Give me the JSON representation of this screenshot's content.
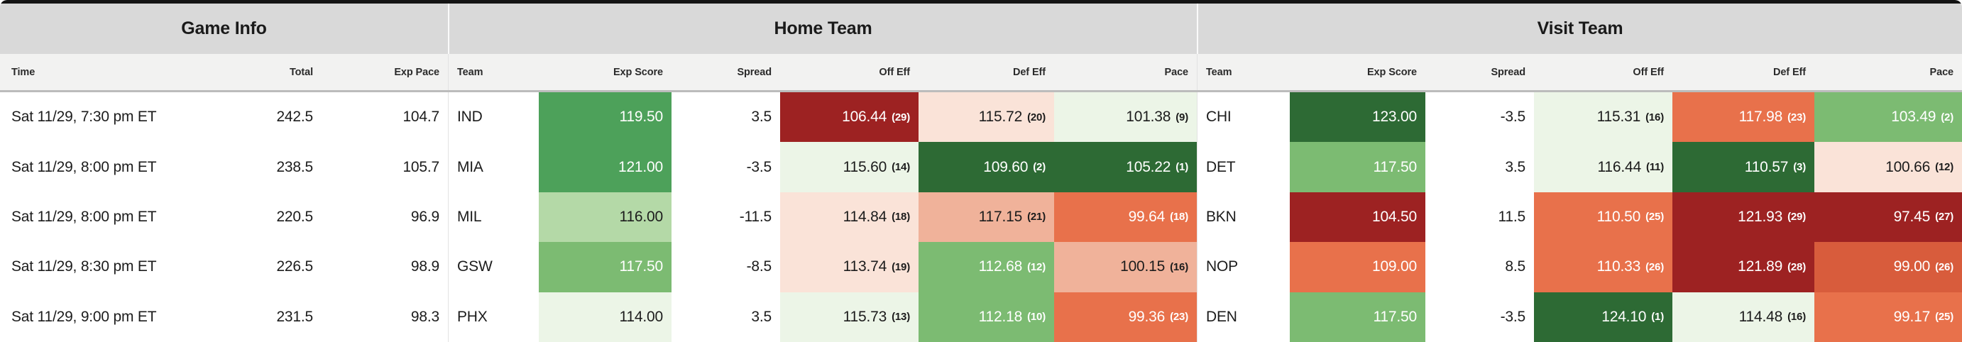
{
  "header": {
    "sections": [
      {
        "title": "Game Info"
      },
      {
        "title": "Home Team"
      },
      {
        "title": "Visit Team"
      }
    ],
    "game_cols": [
      "Time",
      "Total",
      "Exp Pace"
    ],
    "home_cols": [
      "Team",
      "Exp Score",
      "Spread",
      "Off Eff",
      "Def Eff",
      "Pace"
    ],
    "visit_cols": [
      "Team",
      "Exp Score",
      "Spread",
      "Off Eff",
      "Def Eff",
      "Pace"
    ]
  },
  "palette": {
    "g5": "#2d6a34",
    "g4": "#4da15a",
    "g3": "#7cbb72",
    "g2": "#b4d9a7",
    "g1": "#ecf5e7",
    "r1": "#fae3d8",
    "r2": "#f0b29a",
    "r3": "#e8714b",
    "r4": "#d85c3c",
    "r5": "#9d2222"
  },
  "rows": [
    {
      "time": "Sat 11/29, 7:30 pm ET",
      "total": "242.5",
      "exp_pace": "104.7",
      "home": {
        "team": "IND",
        "exp_score": {
          "value": "119.50",
          "bg": "g4"
        },
        "spread": "3.5",
        "off_eff": {
          "value": "106.44",
          "rank": "(29)",
          "bg": "r5"
        },
        "def_eff": {
          "value": "115.72",
          "rank": "(20)",
          "bg": "r1"
        },
        "pace": {
          "value": "101.38",
          "rank": "(9)",
          "bg": "g1"
        }
      },
      "visit": {
        "team": "CHI",
        "exp_score": {
          "value": "123.00",
          "bg": "g5"
        },
        "spread": "-3.5",
        "off_eff": {
          "value": "115.31",
          "rank": "(16)",
          "bg": "g1"
        },
        "def_eff": {
          "value": "117.98",
          "rank": "(23)",
          "bg": "r3"
        },
        "pace": {
          "value": "103.49",
          "rank": "(2)",
          "bg": "g3"
        }
      }
    },
    {
      "time": "Sat 11/29, 8:00 pm ET",
      "total": "238.5",
      "exp_pace": "105.7",
      "home": {
        "team": "MIA",
        "exp_score": {
          "value": "121.00",
          "bg": "g4"
        },
        "spread": "-3.5",
        "off_eff": {
          "value": "115.60",
          "rank": "(14)",
          "bg": "g1"
        },
        "def_eff": {
          "value": "109.60",
          "rank": "(2)",
          "bg": "g5"
        },
        "pace": {
          "value": "105.22",
          "rank": "(1)",
          "bg": "g5"
        }
      },
      "visit": {
        "team": "DET",
        "exp_score": {
          "value": "117.50",
          "bg": "g3"
        },
        "spread": "3.5",
        "off_eff": {
          "value": "116.44",
          "rank": "(11)",
          "bg": "g1"
        },
        "def_eff": {
          "value": "110.57",
          "rank": "(3)",
          "bg": "g5"
        },
        "pace": {
          "value": "100.66",
          "rank": "(12)",
          "bg": "r1"
        }
      }
    },
    {
      "time": "Sat 11/29, 8:00 pm ET",
      "total": "220.5",
      "exp_pace": "96.9",
      "home": {
        "team": "MIL",
        "exp_score": {
          "value": "116.00",
          "bg": "g2"
        },
        "spread": "-11.5",
        "off_eff": {
          "value": "114.84",
          "rank": "(18)",
          "bg": "r1"
        },
        "def_eff": {
          "value": "117.15",
          "rank": "(21)",
          "bg": "r2"
        },
        "pace": {
          "value": "99.64",
          "rank": "(18)",
          "bg": "r3"
        }
      },
      "visit": {
        "team": "BKN",
        "exp_score": {
          "value": "104.50",
          "bg": "r5"
        },
        "spread": "11.5",
        "off_eff": {
          "value": "110.50",
          "rank": "(25)",
          "bg": "r3"
        },
        "def_eff": {
          "value": "121.93",
          "rank": "(29)",
          "bg": "r5"
        },
        "pace": {
          "value": "97.45",
          "rank": "(27)",
          "bg": "r5"
        }
      }
    },
    {
      "time": "Sat 11/29, 8:30 pm ET",
      "total": "226.5",
      "exp_pace": "98.9",
      "home": {
        "team": "GSW",
        "exp_score": {
          "value": "117.50",
          "bg": "g3"
        },
        "spread": "-8.5",
        "off_eff": {
          "value": "113.74",
          "rank": "(19)",
          "bg": "r1"
        },
        "def_eff": {
          "value": "112.68",
          "rank": "(12)",
          "bg": "g3"
        },
        "pace": {
          "value": "100.15",
          "rank": "(16)",
          "bg": "r2"
        }
      },
      "visit": {
        "team": "NOP",
        "exp_score": {
          "value": "109.00",
          "bg": "r3"
        },
        "spread": "8.5",
        "off_eff": {
          "value": "110.33",
          "rank": "(26)",
          "bg": "r3"
        },
        "def_eff": {
          "value": "121.89",
          "rank": "(28)",
          "bg": "r5"
        },
        "pace": {
          "value": "99.00",
          "rank": "(26)",
          "bg": "r4"
        }
      }
    },
    {
      "time": "Sat 11/29, 9:00 pm ET",
      "total": "231.5",
      "exp_pace": "98.3",
      "home": {
        "team": "PHX",
        "exp_score": {
          "value": "114.00",
          "bg": "g1"
        },
        "spread": "3.5",
        "off_eff": {
          "value": "115.73",
          "rank": "(13)",
          "bg": "g1"
        },
        "def_eff": {
          "value": "112.18",
          "rank": "(10)",
          "bg": "g3"
        },
        "pace": {
          "value": "99.36",
          "rank": "(23)",
          "bg": "r3"
        }
      },
      "visit": {
        "team": "DEN",
        "exp_score": {
          "value": "117.50",
          "bg": "g3"
        },
        "spread": "-3.5",
        "off_eff": {
          "value": "124.10",
          "rank": "(1)",
          "bg": "g5"
        },
        "def_eff": {
          "value": "114.48",
          "rank": "(16)",
          "bg": "g1"
        },
        "pace": {
          "value": "99.17",
          "rank": "(25)",
          "bg": "r3"
        }
      }
    }
  ]
}
